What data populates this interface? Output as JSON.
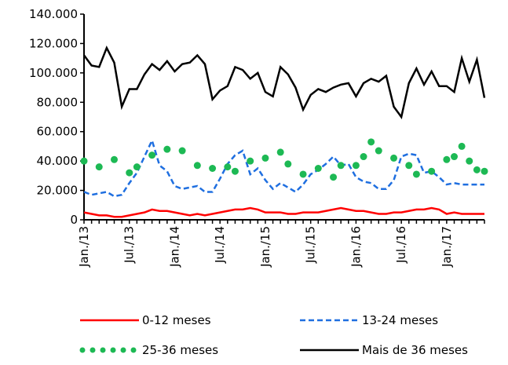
{
  "chart_data": {
    "type": "line",
    "categories": [
      "Jan./13",
      null,
      null,
      null,
      null,
      null,
      "Jul./13",
      null,
      null,
      null,
      null,
      null,
      "Jan./14",
      null,
      null,
      null,
      null,
      null,
      "Jul./14",
      null,
      null,
      null,
      null,
      null,
      "Jan./15",
      null,
      null,
      null,
      null,
      null,
      "Jul./15",
      null,
      null,
      null,
      null,
      null,
      "Jan./16",
      null,
      null,
      null,
      null,
      null,
      "Jul./16",
      null,
      null,
      null,
      null,
      null,
      "Jan./17",
      null,
      null,
      null,
      null,
      null
    ],
    "ylim": [
      0,
      140000
    ],
    "yticks": [
      0,
      {
        "value": 20000,
        "label": "20.000"
      },
      {
        "value": 40000,
        "label": "40.000"
      },
      {
        "value": 60000,
        "label": "60.000"
      },
      {
        "value": 80000,
        "label": "80.000"
      },
      {
        "value": 100000,
        "label": "100.000"
      },
      {
        "value": 120000,
        "label": "120.000"
      },
      {
        "value": 140000,
        "label": "140.000"
      }
    ],
    "series": [
      {
        "name": "0-12 meses",
        "color": "#ff0000",
        "line_style": "solid",
        "values": [
          5000,
          4000,
          3000,
          3000,
          2000,
          2000,
          3000,
          4000,
          5000,
          7000,
          6000,
          6000,
          5000,
          4000,
          3000,
          4000,
          3000,
          4000,
          5000,
          6000,
          7000,
          7000,
          8000,
          7000,
          5000,
          5000,
          5000,
          4000,
          4000,
          5000,
          5000,
          5000,
          6000,
          7000,
          8000,
          7000,
          6000,
          6000,
          5000,
          4000,
          4000,
          5000,
          5000,
          6000,
          7000,
          7000,
          8000,
          7000,
          4000,
          5000,
          4000,
          4000,
          4000,
          4000
        ]
      },
      {
        "name": "13-24 meses",
        "color": "#1f6fe0",
        "line_style": "dashed",
        "values": [
          19000,
          17000,
          18000,
          19000,
          16000,
          17000,
          25000,
          32000,
          43000,
          54000,
          37000,
          33000,
          23000,
          21000,
          22000,
          23000,
          19000,
          19000,
          28000,
          38000,
          44000,
          47000,
          31000,
          35000,
          27000,
          21000,
          25000,
          22000,
          19000,
          24000,
          31000,
          34000,
          38000,
          43000,
          37000,
          38000,
          29000,
          26000,
          25000,
          21000,
          21000,
          27000,
          43000,
          45000,
          44000,
          32000,
          33000,
          29000,
          24000,
          25000,
          24000,
          24000,
          24000,
          24000
        ]
      },
      {
        "name": "25-36 meses",
        "color": "#1db954",
        "line_style": "dotted",
        "values": [
          40000,
          null,
          36000,
          null,
          41000,
          null,
          32000,
          36000,
          null,
          44000,
          null,
          48000,
          null,
          47000,
          null,
          37000,
          null,
          35000,
          null,
          36000,
          33000,
          null,
          40000,
          null,
          42000,
          null,
          46000,
          38000,
          null,
          31000,
          null,
          35000,
          null,
          29000,
          37000,
          null,
          37000,
          43000,
          53000,
          47000,
          null,
          42000,
          null,
          37000,
          31000,
          null,
          33000,
          null,
          41000,
          43000,
          50000,
          40000,
          34000,
          33000
        ]
      },
      {
        "name": "Mais de 36 meses",
        "color": "#000000",
        "line_style": "solid",
        "values": [
          112000,
          105000,
          104000,
          117000,
          107000,
          77000,
          89000,
          89000,
          99000,
          106000,
          102000,
          108000,
          101000,
          106000,
          107000,
          112000,
          106000,
          82000,
          88000,
          91000,
          104000,
          102000,
          96000,
          100000,
          87000,
          84000,
          104000,
          99000,
          90000,
          75000,
          85000,
          89000,
          87000,
          90000,
          92000,
          93000,
          84000,
          93000,
          96000,
          94000,
          98000,
          77000,
          70000,
          93000,
          103000,
          92000,
          101000,
          91000,
          91000,
          87000,
          110000,
          94000,
          109000,
          83000
        ]
      }
    ]
  }
}
